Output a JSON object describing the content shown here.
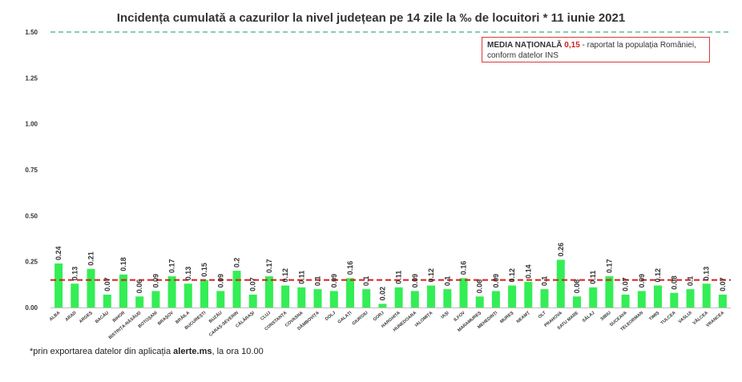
{
  "chart_data": {
    "type": "bar",
    "title": "Incidența cumulată a cazurilor la nivel județean pe 14 zile la ‰ de locuitori *  11 iunie 2021",
    "ylim": [
      0,
      1.5
    ],
    "yticks": [
      "0.00",
      "0.25",
      "0.50",
      "0.75",
      "1.00",
      "1.25",
      "1.50"
    ],
    "grid": false,
    "bar_color": "#33ee55",
    "categories": [
      "ALBA",
      "ARAD",
      "ARGEȘ",
      "BACĂU",
      "BIHOR",
      "BISTRIȚA-NĂSĂUD",
      "BOTOȘANI",
      "BRAȘOV",
      "BRĂILA",
      "BUCUREȘTI",
      "BUZĂU",
      "CARAȘ-SEVERIN",
      "CĂLĂRAȘI",
      "CLUJ",
      "CONSTANȚA",
      "COVASNA",
      "DÂMBOVIȚA",
      "DOLJ",
      "GALAȚI",
      "GIURGIU",
      "GORJ",
      "HARGHITA",
      "HUNEDOARA",
      "IALOMIȚA",
      "IAȘI",
      "ILFOV",
      "MARAMUREȘ",
      "MEHEDINȚI",
      "MUREȘ",
      "NEAMȚ",
      "OLT",
      "PRAHOVA",
      "SATU MARE",
      "SĂLAJ",
      "SIBIU",
      "SUCEAVA",
      "TELEORMAN",
      "TIMIȘ",
      "TULCEA",
      "VASLUI",
      "VÂLCEA",
      "VRANCEA"
    ],
    "values": [
      0.24,
      0.13,
      0.21,
      0.07,
      0.18,
      0.06,
      0.09,
      0.17,
      0.13,
      0.15,
      0.09,
      0.2,
      0.07,
      0.17,
      0.12,
      0.11,
      0.1,
      0.09,
      0.16,
      0.1,
      0.02,
      0.11,
      0.09,
      0.12,
      0.1,
      0.16,
      0.06,
      0.09,
      0.12,
      0.14,
      0.1,
      0.26,
      0.06,
      0.11,
      0.17,
      0.07,
      0.09,
      0.12,
      0.08,
      0.1,
      0.13,
      0.07
    ],
    "value_labels": [
      "0.24",
      "0.13",
      "0.21",
      "0.07",
      "0.18",
      "0.06",
      "0.09",
      "0.17",
      "0.13",
      "0.15",
      "0.09",
      "0.2",
      "0.07",
      "0.17",
      "0.12",
      "0.11",
      "0.1",
      "0.09",
      "0.16",
      "0.1",
      "0.02",
      "0.11",
      "0.09",
      "0.12",
      "0.1",
      "0.16",
      "0.06",
      "0.09",
      "0.12",
      "0.14",
      "0.1",
      "0.26",
      "0.06",
      "0.11",
      "0.17",
      "0.07",
      "0.09",
      "0.12",
      "0.08",
      "0.1",
      "0.13",
      "0.07"
    ],
    "reference_lines": [
      {
        "value": 0.15,
        "color": "#d61f1f",
        "style": "dashed"
      },
      {
        "value": 1.5,
        "color": "#3cb371",
        "style": "dashed"
      }
    ]
  },
  "note": {
    "bold_label": "MEDIA NAȚIONALĂ",
    "value": "0,15",
    "text_line1": "- raportat la populația României,",
    "text_line2": "conform datelor INS"
  },
  "footnote": {
    "before": "*prin exportarea datelor din aplicația ",
    "bold": "alerte.ms",
    "after": ", la ora 10.00"
  }
}
